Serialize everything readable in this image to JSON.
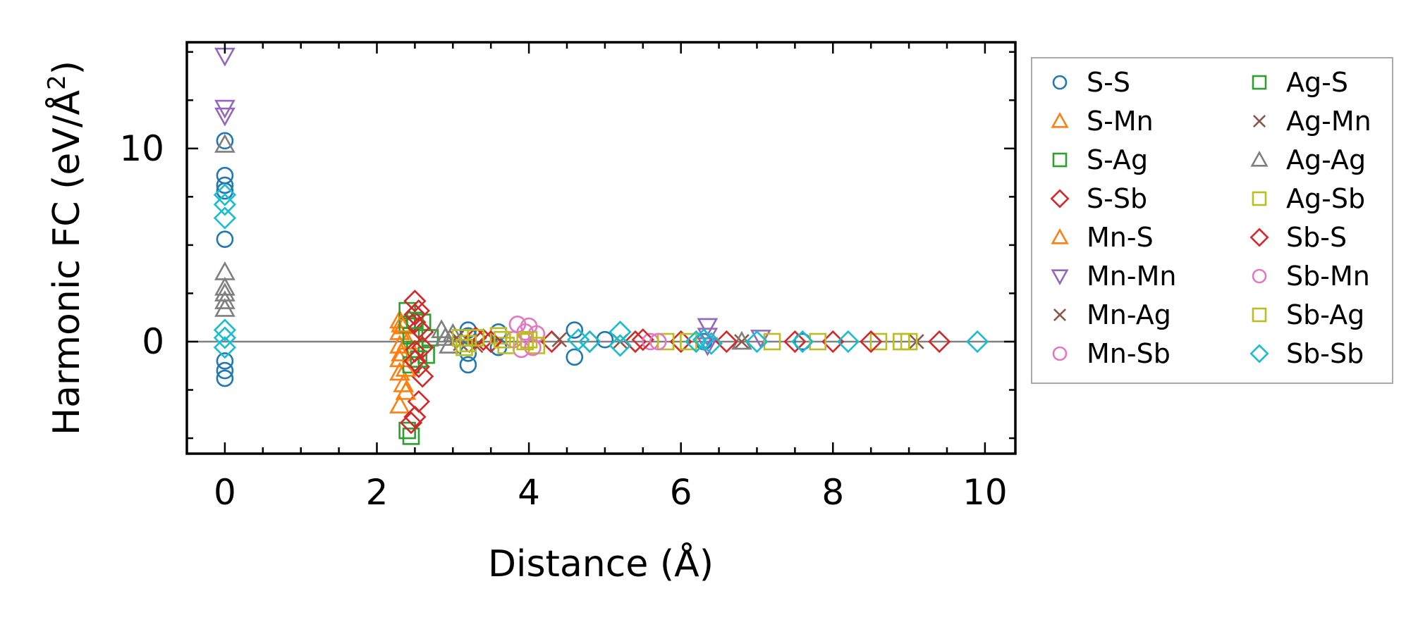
{
  "chart_data": {
    "type": "scatter",
    "xlabel": "Distance (Å)",
    "ylabel_parts": [
      "Harmonic FC (eV/Å",
      "2",
      ")"
    ],
    "xlim": [
      -0.5,
      10.4
    ],
    "ylim": [
      -5.8,
      15.5
    ],
    "xticks": [
      0,
      2,
      4,
      6,
      8,
      10
    ],
    "xtick_labels": [
      "0",
      "2",
      "4",
      "6",
      "8",
      "10"
    ],
    "yticks": [
      0,
      10
    ],
    "ytick_labels": [
      "0",
      "10"
    ],
    "grid": false,
    "zero_line": true,
    "legend_placement": "outside-right",
    "legend_columns": 2,
    "series": [
      {
        "name": "S-S",
        "marker": "circle",
        "color": "#1f77b4",
        "points": [
          [
            0,
            10.4
          ],
          [
            0,
            8.6
          ],
          [
            0,
            8.1
          ],
          [
            0,
            7.8
          ],
          [
            0,
            5.3
          ],
          [
            0,
            -1.0
          ],
          [
            0,
            -1.9
          ],
          [
            0,
            -1.5
          ],
          [
            3.2,
            0.6
          ],
          [
            3.2,
            0.3
          ],
          [
            3.2,
            -0.6
          ],
          [
            3.2,
            -1.2
          ],
          [
            3.6,
            0.5
          ],
          [
            3.6,
            -0.3
          ],
          [
            4.6,
            0.6
          ],
          [
            4.6,
            -0.8
          ],
          [
            5.0,
            0.1
          ],
          [
            6.3,
            0.0
          ],
          [
            7.6,
            0.0
          ]
        ]
      },
      {
        "name": "S-Mn",
        "marker": "triangle-up",
        "color": "#ff7f0e",
        "points": [
          [
            2.3,
            1.1
          ],
          [
            2.3,
            0.5
          ],
          [
            2.3,
            -0.2
          ],
          [
            2.3,
            -0.9
          ],
          [
            2.3,
            -1.6
          ],
          [
            2.35,
            -2.2
          ],
          [
            2.3,
            -3.3
          ],
          [
            2.35,
            0.8
          ],
          [
            2.4,
            0.0
          ]
        ]
      },
      {
        "name": "S-Ag",
        "marker": "square",
        "color": "#2ca02c",
        "points": [
          [
            2.4,
            1.6
          ],
          [
            2.4,
            0.9
          ],
          [
            2.45,
            0.3
          ],
          [
            2.5,
            -0.4
          ],
          [
            2.45,
            -1.2
          ],
          [
            2.6,
            1.0
          ],
          [
            2.65,
            -0.7
          ],
          [
            2.4,
            -4.6
          ],
          [
            2.45,
            -4.9
          ]
        ]
      },
      {
        "name": "S-Sb",
        "marker": "diamond",
        "color": "#d62728",
        "points": [
          [
            2.5,
            2.1
          ],
          [
            2.55,
            1.6
          ],
          [
            2.5,
            1.0
          ],
          [
            2.6,
            0.5
          ],
          [
            2.5,
            -0.5
          ],
          [
            2.55,
            -1.3
          ],
          [
            2.6,
            -1.8
          ],
          [
            2.55,
            -3.1
          ],
          [
            2.5,
            -3.9
          ],
          [
            2.45,
            -4.2
          ],
          [
            3.4,
            0.1
          ],
          [
            4.3,
            0.0
          ],
          [
            5.4,
            0.0
          ],
          [
            6.0,
            0.0
          ]
        ]
      },
      {
        "name": "Mn-S",
        "marker": "triangle-up",
        "color": "#ff7f0e",
        "points": [
          [
            2.32,
            0.9
          ],
          [
            2.32,
            -0.6
          ],
          [
            2.38,
            -1.4
          ],
          [
            2.38,
            -2.6
          ]
        ]
      },
      {
        "name": "Mn-Mn",
        "marker": "triangle-down",
        "color": "#9467bd",
        "points": [
          [
            0,
            14.8
          ],
          [
            0,
            12.1
          ],
          [
            0,
            11.7
          ],
          [
            6.35,
            0.8
          ],
          [
            6.35,
            0.3
          ],
          [
            7.05,
            0.2
          ],
          [
            6.35,
            -0.2
          ]
        ]
      },
      {
        "name": "Mn-Ag",
        "marker": "x",
        "color": "#8c564b",
        "points": [
          [
            3.05,
            0.2
          ],
          [
            3.3,
            -0.2
          ],
          [
            5.2,
            0.0
          ],
          [
            9.1,
            0.0
          ]
        ]
      },
      {
        "name": "Mn-Sb",
        "marker": "circle",
        "color": "#e377c2",
        "points": [
          [
            3.85,
            0.9
          ],
          [
            4.0,
            0.8
          ],
          [
            3.8,
            0.1
          ],
          [
            3.9,
            -0.4
          ],
          [
            4.1,
            0.4
          ],
          [
            5.6,
            0.0
          ]
        ]
      },
      {
        "name": "Ag-S",
        "marker": "square",
        "color": "#2ca02c",
        "points": [
          [
            2.5,
            1.1
          ],
          [
            2.55,
            -0.9
          ],
          [
            2.7,
            0.2
          ]
        ]
      },
      {
        "name": "Ag-Mn",
        "marker": "x",
        "color": "#8c564b",
        "points": [
          [
            3.1,
            -0.1
          ],
          [
            4.4,
            0.1
          ],
          [
            6.8,
            0.0
          ]
        ]
      },
      {
        "name": "Ag-Ag",
        "marker": "triangle-up",
        "color": "#7f7f7f",
        "points": [
          [
            0,
            10.2
          ],
          [
            0,
            3.6
          ],
          [
            0,
            2.8
          ],
          [
            0,
            2.5
          ],
          [
            0,
            2.1
          ],
          [
            0,
            1.7
          ],
          [
            2.85,
            0.6
          ],
          [
            2.9,
            0.2
          ],
          [
            2.95,
            -0.2
          ],
          [
            3.0,
            0.4
          ],
          [
            6.8,
            0.0
          ]
        ]
      },
      {
        "name": "Ag-Sb",
        "marker": "square",
        "color": "#bcbd22",
        "points": [
          [
            3.1,
            0.2
          ],
          [
            3.2,
            -0.1
          ],
          [
            3.6,
            0.3
          ],
          [
            3.7,
            -0.2
          ],
          [
            4.0,
            0.1
          ],
          [
            4.1,
            -0.2
          ],
          [
            5.8,
            0.0
          ],
          [
            7.2,
            0.0
          ],
          [
            8.6,
            0.0
          ],
          [
            8.9,
            0.0
          ]
        ]
      },
      {
        "name": "Sb-S",
        "marker": "diamond",
        "color": "#d62728",
        "points": [
          [
            2.5,
            1.4
          ],
          [
            2.55,
            0.7
          ],
          [
            2.6,
            -0.3
          ],
          [
            2.5,
            -1.0
          ],
          [
            3.3,
            0.2
          ],
          [
            3.5,
            0.0
          ],
          [
            4.8,
            0.0
          ],
          [
            5.5,
            0.1
          ],
          [
            6.6,
            0.0
          ],
          [
            7.5,
            0.0
          ],
          [
            8.0,
            0.0
          ],
          [
            8.5,
            0.0
          ],
          [
            9.4,
            0.0
          ]
        ]
      },
      {
        "name": "Sb-Mn",
        "marker": "circle",
        "color": "#e377c2",
        "points": [
          [
            3.95,
            0.5
          ],
          [
            4.05,
            -0.3
          ],
          [
            5.7,
            0.0
          ]
        ]
      },
      {
        "name": "Sb-Ag",
        "marker": "square",
        "color": "#bcbd22",
        "points": [
          [
            3.15,
            -0.3
          ],
          [
            3.3,
            0.2
          ],
          [
            3.65,
            0.1
          ],
          [
            3.95,
            0.0
          ],
          [
            6.1,
            0.0
          ],
          [
            7.8,
            0.0
          ],
          [
            9.0,
            0.0
          ]
        ]
      },
      {
        "name": "Sb-Sb",
        "marker": "diamond",
        "color": "#17becf",
        "points": [
          [
            0,
            7.6
          ],
          [
            0,
            7.1
          ],
          [
            0,
            6.4
          ],
          [
            0,
            0.6
          ],
          [
            0,
            0.2
          ],
          [
            0,
            -0.3
          ],
          [
            4.65,
            0.1
          ],
          [
            4.8,
            0.0
          ],
          [
            5.2,
            0.5
          ],
          [
            5.2,
            -0.2
          ],
          [
            6.2,
            0.0
          ],
          [
            6.3,
            0.1
          ],
          [
            6.4,
            -0.1
          ],
          [
            7.0,
            0.0
          ],
          [
            7.6,
            0.0
          ],
          [
            8.2,
            0.0
          ],
          [
            9.9,
            0.0
          ]
        ]
      }
    ]
  }
}
